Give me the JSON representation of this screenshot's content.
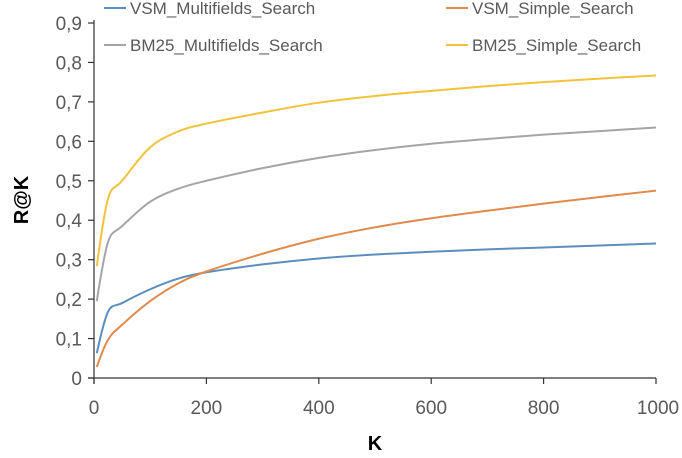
{
  "chart_data": {
    "type": "line",
    "title": "",
    "xlabel": "K",
    "ylabel": "R@K",
    "xlim": [
      0,
      1000
    ],
    "ylim": [
      0,
      0.9
    ],
    "grid": false,
    "legend_position": "top",
    "x_ticks": [
      "0",
      "200",
      "400",
      "600",
      "800",
      "1000"
    ],
    "y_ticks": [
      "0",
      "0,1",
      "0,2",
      "0,3",
      "0,4",
      "0,5",
      "0,6",
      "0,7",
      "0,8",
      "0,9"
    ],
    "x": [
      5,
      25,
      50,
      100,
      150,
      200,
      300,
      400,
      500,
      600,
      700,
      800,
      900,
      1000
    ],
    "series": [
      {
        "name": "VSM_Multifields_Search",
        "color": "#5B8DBE",
        "values": [
          0.063,
          0.168,
          0.19,
          0.225,
          0.252,
          0.268,
          0.288,
          0.303,
          0.313,
          0.32,
          0.326,
          0.331,
          0.336,
          0.341
        ]
      },
      {
        "name": "VSM_Simple_Search",
        "color": "#E08A4E",
        "values": [
          0.028,
          0.097,
          0.135,
          0.195,
          0.24,
          0.27,
          0.315,
          0.353,
          0.382,
          0.405,
          0.424,
          0.442,
          0.459,
          0.475
        ]
      },
      {
        "name": "BM25_Multifields_Search",
        "color": "#A5A5A5",
        "values": [
          0.195,
          0.345,
          0.385,
          0.447,
          0.48,
          0.5,
          0.532,
          0.558,
          0.578,
          0.594,
          0.606,
          0.617,
          0.626,
          0.635
        ]
      },
      {
        "name": "BM25_Simple_Search",
        "color": "#F2C33A",
        "values": [
          0.284,
          0.455,
          0.5,
          0.585,
          0.625,
          0.645,
          0.673,
          0.698,
          0.715,
          0.728,
          0.74,
          0.75,
          0.759,
          0.767
        ]
      }
    ]
  }
}
